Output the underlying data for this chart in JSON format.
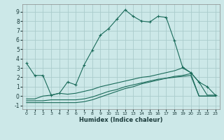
{
  "xlabel": "Humidex (Indice chaleur)",
  "bg_color": "#cce8e8",
  "grid_color": "#aacccc",
  "line_color": "#1a6b5a",
  "xlim": [
    -0.5,
    23.5
  ],
  "ylim": [
    -1.4,
    9.8
  ],
  "xticks": [
    0,
    1,
    2,
    3,
    4,
    5,
    6,
    7,
    8,
    9,
    10,
    11,
    12,
    13,
    14,
    15,
    16,
    17,
    18,
    19,
    20,
    21,
    22,
    23
  ],
  "yticks": [
    -1,
    0,
    1,
    2,
    3,
    4,
    5,
    6,
    7,
    8,
    9
  ],
  "line1_x": [
    0,
    1,
    2,
    3,
    4,
    5,
    6,
    7,
    8,
    9,
    10,
    11,
    12,
    13,
    14,
    15,
    16,
    17,
    18,
    19,
    20,
    21,
    22,
    23
  ],
  "line1_y": [
    3.5,
    2.2,
    2.2,
    0.1,
    0.3,
    1.5,
    1.2,
    3.3,
    4.9,
    6.5,
    7.2,
    8.2,
    9.2,
    8.5,
    8.0,
    7.9,
    8.5,
    8.4,
    5.9,
    3.1,
    2.5,
    1.5,
    1.0,
    0.1
  ],
  "line2_x": [
    0,
    1,
    2,
    3,
    4,
    5,
    6,
    7,
    8,
    9,
    10,
    11,
    12,
    13,
    14,
    15,
    16,
    17,
    18,
    19,
    20,
    21,
    22,
    23
  ],
  "line2_y": [
    -0.3,
    -0.3,
    0.0,
    0.1,
    0.3,
    0.2,
    0.3,
    0.5,
    0.7,
    1.0,
    1.2,
    1.4,
    1.6,
    1.8,
    2.0,
    2.1,
    2.3,
    2.5,
    2.7,
    3.0,
    2.5,
    1.5,
    0.1,
    0.1
  ],
  "line3_x": [
    0,
    1,
    2,
    3,
    4,
    5,
    6,
    7,
    8,
    9,
    10,
    11,
    12,
    13,
    14,
    15,
    16,
    17,
    18,
    19,
    20,
    21,
    22,
    23
  ],
  "line3_y": [
    -0.5,
    -0.5,
    -0.5,
    -0.4,
    -0.4,
    -0.4,
    -0.4,
    -0.3,
    -0.1,
    0.2,
    0.5,
    0.7,
    1.0,
    1.2,
    1.4,
    1.6,
    1.8,
    1.9,
    2.1,
    2.2,
    2.4,
    0.0,
    0.0,
    0.0
  ],
  "line4_x": [
    0,
    1,
    2,
    3,
    4,
    5,
    6,
    7,
    8,
    9,
    10,
    11,
    12,
    13,
    14,
    15,
    16,
    17,
    18,
    19,
    20,
    21,
    22,
    23
  ],
  "line4_y": [
    -0.7,
    -0.7,
    -0.7,
    -0.7,
    -0.7,
    -0.7,
    -0.7,
    -0.6,
    -0.4,
    -0.1,
    0.2,
    0.5,
    0.8,
    1.0,
    1.3,
    1.5,
    1.7,
    1.9,
    2.0,
    2.1,
    2.2,
    0.0,
    0.0,
    0.0
  ]
}
